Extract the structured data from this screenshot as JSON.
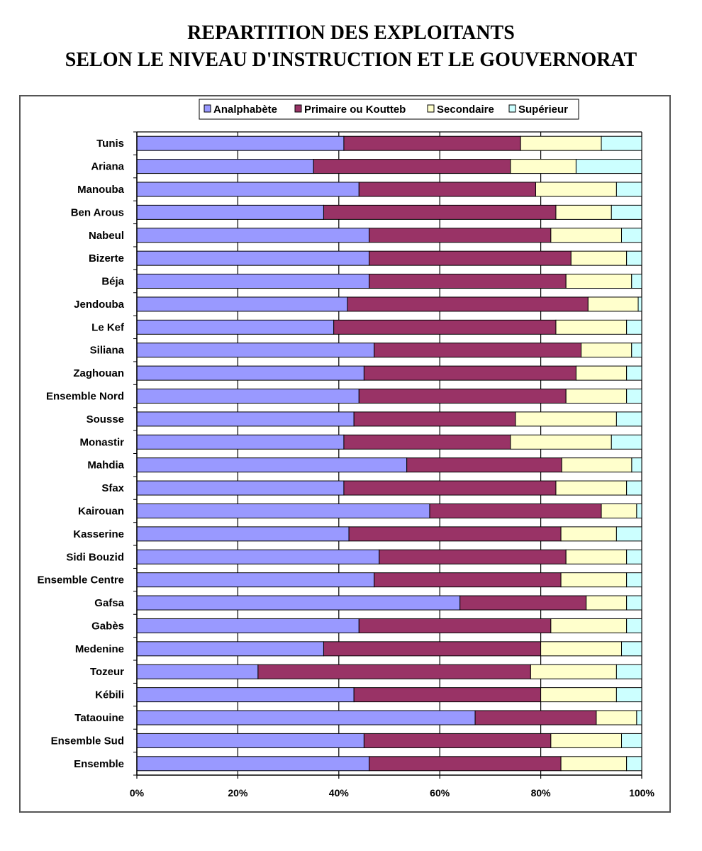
{
  "title_line1": "REPARTITION DES EXPLOITANTS",
  "title_line2": "SELON LE NIVEAU D'INSTRUCTION ET LE GOUVERNORAT",
  "colors": {
    "analphabete": "#9999ff",
    "primaire": "#993366",
    "secondaire": "#ffffcc",
    "superieur": "#ccffff",
    "bar_border": "#000000",
    "grid": "#000000"
  },
  "chart_data": {
    "type": "bar",
    "orientation": "horizontal",
    "stacked": "percent",
    "title": "REPARTITION DES EXPLOITANTS SELON LE NIVEAU D'INSTRUCTION ET LE GOUVERNORAT",
    "xlim": [
      0,
      100
    ],
    "x_ticks": [
      "0%",
      "20%",
      "40%",
      "60%",
      "80%",
      "100%"
    ],
    "grid": "vertical",
    "legend_position": "top",
    "categories": [
      "Tunis",
      "Ariana",
      "Manouba",
      "Ben Arous",
      "Nabeul",
      "Bizerte",
      "Béja",
      "Jendouba",
      "Le Kef",
      "Siliana",
      "Zaghouan",
      "Ensemble Nord",
      "Sousse",
      "Monastir",
      "Mahdia",
      "Sfax",
      "Kairouan",
      "Kasserine",
      "Sidi Bouzid",
      "Ensemble Centre",
      "Gafsa",
      "Gabès",
      "Medenine",
      "Tozeur",
      "Kébili",
      "Tataouine",
      "Ensemble Sud",
      "Ensemble"
    ],
    "series": [
      {
        "name": "Analphabète",
        "color_key": "analphabete",
        "values": [
          41,
          35,
          44,
          37,
          46,
          46,
          46,
          42,
          39,
          47,
          45,
          44,
          43,
          41,
          54,
          41,
          58,
          42,
          48,
          47,
          64,
          44,
          37,
          24,
          43,
          67,
          45,
          46
        ]
      },
      {
        "name": "Primaire ou Koutteb",
        "color_key": "primaire",
        "values": [
          35,
          39,
          35,
          46,
          36,
          40,
          39,
          48,
          44,
          41,
          42,
          41,
          32,
          33,
          31,
          42,
          34,
          42,
          37,
          37,
          25,
          38,
          43,
          54,
          37,
          24,
          37,
          38
        ]
      },
      {
        "name": "Secondaire",
        "color_key": "secondaire",
        "values": [
          16,
          13,
          16,
          11,
          14,
          11,
          13,
          10,
          14,
          10,
          10,
          12,
          20,
          20,
          14,
          14,
          7,
          11,
          12,
          13,
          8,
          15,
          16,
          17,
          15,
          8,
          14,
          13
        ]
      },
      {
        "name": "Supérieur",
        "color_key": "superieur",
        "values": [
          8,
          13,
          5,
          6,
          4,
          3,
          2,
          0.7,
          3,
          2,
          3,
          3,
          5,
          6,
          2,
          3,
          1,
          5,
          3,
          3,
          3,
          3,
          4,
          5,
          5,
          1,
          4,
          3
        ]
      }
    ]
  }
}
